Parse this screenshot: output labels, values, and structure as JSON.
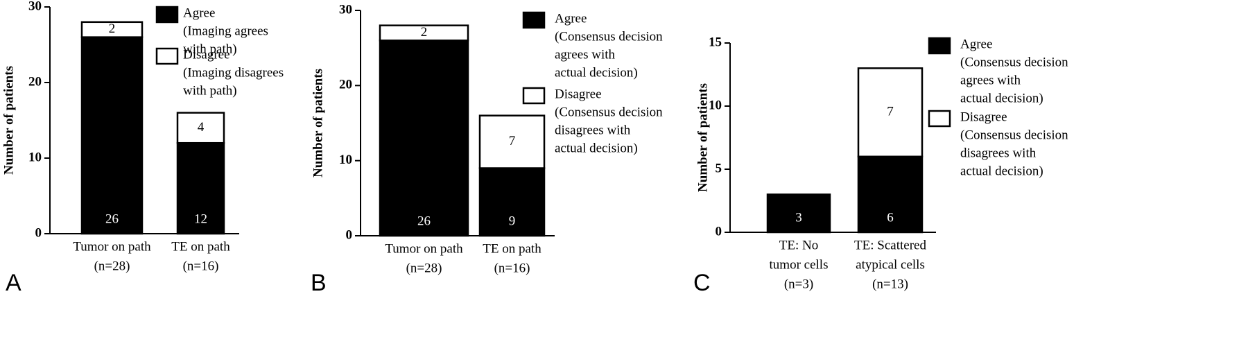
{
  "chart_data": [
    {
      "type": "bar",
      "stacked": true,
      "panel_label": "A",
      "y_label": "Number of patients",
      "categories": [
        [
          "Tumor on path",
          "(n=28)"
        ],
        [
          "TE on path",
          "(n=16)"
        ]
      ],
      "series": [
        {
          "name": "Agree",
          "description": [
            "(Imaging agrees",
            "with path)"
          ],
          "color": "#000000",
          "values": [
            26,
            12
          ]
        },
        {
          "name": "Disagree",
          "description": [
            "(Imaging disagrees",
            "with path)"
          ],
          "color": "#ffffff",
          "values": [
            2,
            4
          ]
        }
      ],
      "ylim": [
        0,
        30
      ],
      "yticks": [
        0,
        10,
        20,
        30
      ]
    },
    {
      "type": "bar",
      "stacked": true,
      "panel_label": "B",
      "y_label": "Number of patients",
      "categories": [
        [
          "Tumor on path",
          "(n=28)"
        ],
        [
          "TE on path",
          "(n=16)"
        ]
      ],
      "series": [
        {
          "name": "Agree",
          "description": [
            "(Consensus decision",
            "agrees with",
            "actual decision)"
          ],
          "color": "#000000",
          "values": [
            26,
            9
          ]
        },
        {
          "name": "Disagree",
          "description": [
            "(Consensus decision",
            "disagrees with",
            "actual decision)"
          ],
          "color": "#ffffff",
          "values": [
            2,
            7
          ]
        }
      ],
      "ylim": [
        0,
        30
      ],
      "yticks": [
        0,
        10,
        20,
        30
      ]
    },
    {
      "type": "bar",
      "stacked": true,
      "panel_label": "C",
      "y_label": "Number of patients",
      "categories": [
        [
          "TE: No",
          "tumor cells",
          "(n=3)"
        ],
        [
          "TE: Scattered",
          "atypical cells",
          "(n=13)"
        ]
      ],
      "series": [
        {
          "name": "Agree",
          "description": [
            "(Consensus decision",
            "agrees with",
            "actual decision)"
          ],
          "color": "#000000",
          "values": [
            3,
            6
          ]
        },
        {
          "name": "Disagree",
          "description": [
            "(Consensus decision",
            "disagrees with",
            "actual decision)"
          ],
          "color": "#ffffff",
          "values": [
            0,
            7
          ]
        }
      ],
      "ylim": [
        0,
        15
      ],
      "yticks": [
        0,
        5,
        10,
        15
      ]
    }
  ]
}
